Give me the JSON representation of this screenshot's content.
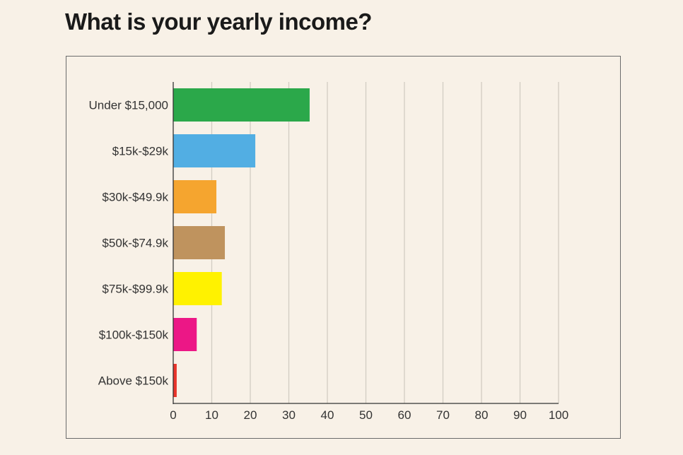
{
  "chart_data": {
    "type": "bar",
    "orientation": "horizontal",
    "title": "What is your yearly income?",
    "categories": [
      "Under $15,000",
      "$15k-$29k",
      "$30k-$49.9k",
      "$50k-$74.9k",
      "$75k-$99.9k",
      "$100k-$150k",
      "Above $150k"
    ],
    "values": [
      35.4,
      21.3,
      11.2,
      13.4,
      12.6,
      6.1,
      0.9
    ],
    "colors": [
      "#2ba84a",
      "#52aee3",
      "#f5a52f",
      "#bf935e",
      "#fff200",
      "#ec1786",
      "#e8342b"
    ],
    "xlim": [
      0,
      100
    ],
    "xticks": [
      "0",
      "10",
      "20",
      "30",
      "40",
      "50",
      "60",
      "70",
      "80",
      "90",
      "100"
    ],
    "grid": "vertical",
    "xlabel": "",
    "ylabel": ""
  }
}
